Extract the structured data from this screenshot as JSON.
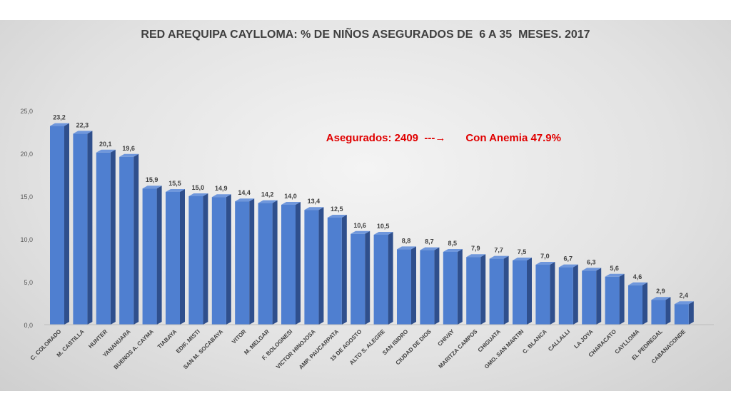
{
  "chart_data": {
    "type": "bar",
    "title": "RED AREQUIPA CAYLLOMA: % DE NIÑOS ASEGURADOS DE  6 A 35  MESES. 2017",
    "categories": [
      "C. COLORADO",
      "M. CASTILLA",
      "HUNTER",
      "YANAHUARA",
      "BUENOS A. CAYMA",
      "TIABAYA",
      "EDIF. MISTI",
      "SAN M. SOCABAYA",
      "VITOR",
      "M. MELGAR",
      "F. BOLOGNESI",
      "VICTOR HINOJOSA",
      "AMP. PAUCARPATA",
      "15 DE AGOSTO",
      "ALTO S. ALEGRE",
      "SAN ISIDRO",
      "CIUDAD DE DIOS",
      "CHIVAY",
      "MARITZA CAMPOS",
      "CHIGUATA",
      "GMO. SAN MARTIN",
      "C. BLANCA",
      "CALLALLI",
      "LA JOYA",
      "CHARACATO",
      "CAYLLOMA",
      "EL PEDREGAL",
      "CABANACONDE"
    ],
    "values": [
      23.2,
      22.3,
      20.1,
      19.6,
      15.9,
      15.5,
      15.0,
      14.9,
      14.4,
      14.2,
      14.0,
      13.4,
      12.5,
      10.6,
      10.5,
      8.8,
      8.7,
      8.5,
      7.9,
      7.7,
      7.5,
      7.0,
      6.7,
      6.3,
      5.6,
      4.6,
      2.9,
      2.4
    ],
    "value_labels": [
      "23,2",
      "22,3",
      "20,1",
      "19,6",
      "15,9",
      "15,5",
      "15,0",
      "14,9",
      "14,4",
      "14,2",
      "14,0",
      "13,4",
      "12,5",
      "10,6",
      "10,5",
      "8,8",
      "8,7",
      "8,5",
      "7,9",
      "7,7",
      "7,5",
      "7,0",
      "6,7",
      "6,3",
      "5,6",
      "4,6",
      "2,9",
      "2,4"
    ],
    "y_ticks": [
      "0,0",
      "5,0",
      "10,0",
      "15,0",
      "20,0",
      "25,0"
    ],
    "ylim": [
      0,
      25
    ],
    "xlabel": "",
    "ylabel": "",
    "grid": false,
    "legend": "none",
    "bar_color": "#4f7fd0",
    "bar_side_color": "#2f4f8c",
    "bar_top_color": "#6f97dc",
    "annotation": {
      "left": "Asegurados: 2409  ---",
      "arrow": "→",
      "right": "Con Anemia 47.9%",
      "color": "#e00000"
    }
  }
}
